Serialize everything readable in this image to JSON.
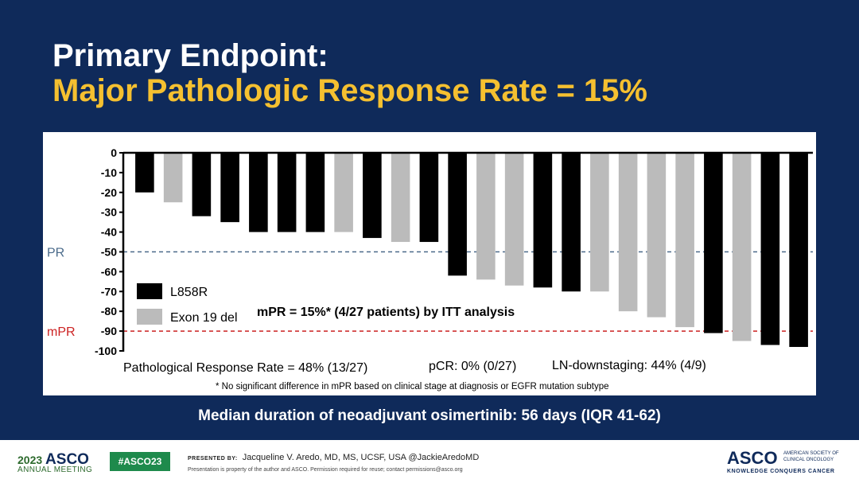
{
  "slide": {
    "title_line1": "Primary Endpoint:",
    "title_line2": "Major Pathologic Response Rate = 15%",
    "median_text": "Median duration of neoadjuvant osimertinib: 56 days (IQR 41-62)"
  },
  "chart_data": {
    "type": "bar",
    "title": "",
    "xlabel": "",
    "ylabel": "",
    "ylim": [
      -100,
      0
    ],
    "yticks": [
      0,
      -10,
      -20,
      -30,
      -40,
      -50,
      -60,
      -70,
      -80,
      -90,
      -100
    ],
    "series": [
      {
        "name": "L858R",
        "color": "#000000"
      },
      {
        "name": "Exon 19 del",
        "color": "#bbbbbb"
      }
    ],
    "bars": [
      {
        "value": -20,
        "series": "L858R"
      },
      {
        "value": -25,
        "series": "Exon 19 del"
      },
      {
        "value": -32,
        "series": "L858R"
      },
      {
        "value": -35,
        "series": "L858R"
      },
      {
        "value": -40,
        "series": "L858R"
      },
      {
        "value": -40,
        "series": "L858R"
      },
      {
        "value": -40,
        "series": "L858R"
      },
      {
        "value": -40,
        "series": "Exon 19 del"
      },
      {
        "value": -43,
        "series": "L858R"
      },
      {
        "value": -45,
        "series": "Exon 19 del"
      },
      {
        "value": -45,
        "series": "L858R"
      },
      {
        "value": -62,
        "series": "L858R"
      },
      {
        "value": -64,
        "series": "Exon 19 del"
      },
      {
        "value": -67,
        "series": "Exon 19 del"
      },
      {
        "value": -68,
        "series": "L858R"
      },
      {
        "value": -70,
        "series": "L858R"
      },
      {
        "value": -70,
        "series": "Exon 19 del"
      },
      {
        "value": -80,
        "series": "Exon 19 del"
      },
      {
        "value": -83,
        "series": "Exon 19 del"
      },
      {
        "value": -88,
        "series": "Exon 19 del"
      },
      {
        "value": -91,
        "series": "L858R"
      },
      {
        "value": -95,
        "series": "Exon 19 del"
      },
      {
        "value": -97,
        "series": "L858R"
      },
      {
        "value": -98,
        "series": "L858R"
      }
    ],
    "reference_lines": [
      {
        "label": "PR",
        "value": -50,
        "color": "#4a6a8a"
      },
      {
        "label": "mPR",
        "value": -90,
        "color": "#cc2222"
      }
    ],
    "annotation": "mPR = 15%* (4/27 patients) by ITT analysis",
    "stats": [
      "Pathological Response Rate = 48% (13/27)",
      "pCR: 0% (0/27)",
      "LN-downstaging: 44% (4/9)"
    ],
    "footnote": "* No significant difference in mPR based on clinical stage at diagnosis or EGFR mutation subtype",
    "legend_position": "left"
  },
  "footer": {
    "year": "2023",
    "asco": "ASCO",
    "annual": "ANNUAL MEETING",
    "hashtag": "#ASCO23",
    "presented_by_label": "PRESENTED BY:",
    "presenter": "Jacqueline V. Aredo, MD, MS, UCSF, USA @JackieAredoMD",
    "note": "Presentation is property of the author and ASCO. Permission required for reuse; contact permissions@asco.org",
    "logo": "ASCO",
    "org": "AMERICAN SOCIETY OF CLINICAL ONCOLOGY",
    "tagline": "KNOWLEDGE CONQUERS CANCER"
  }
}
